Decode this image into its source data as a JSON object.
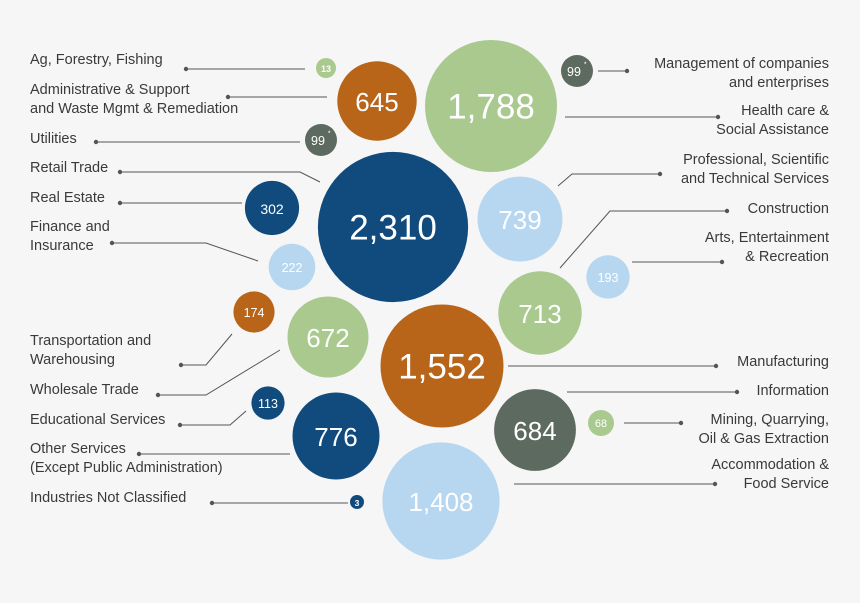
{
  "chart_data": {
    "type": "bubble",
    "title": "",
    "colors": {
      "dark_blue": "#114b7d",
      "light_blue": "#b7d7f0",
      "green": "#a9c98f",
      "orange": "#b8651a",
      "gray": "#5d6a5f",
      "line": "#555555"
    },
    "bubbles": [
      {
        "id": "ag",
        "label": [
          "Ag, Forestry, Fishing"
        ],
        "value": 13,
        "value_label": "13",
        "color": "green",
        "side": "left"
      },
      {
        "id": "admin",
        "label": [
          "Administrative & Support",
          "and Waste Mgmt & Remediation"
        ],
        "value": 645,
        "value_label": "645",
        "color": "orange",
        "side": "left"
      },
      {
        "id": "util",
        "label": [
          "Utilities"
        ],
        "value": 99,
        "value_label": "99",
        "sup": "*",
        "color": "gray",
        "side": "left"
      },
      {
        "id": "retail",
        "label": [
          "Retail Trade"
        ],
        "value": 2310,
        "value_label": "2,310",
        "color": "dark_blue",
        "side": "left"
      },
      {
        "id": "realestate",
        "label": [
          "Real Estate"
        ],
        "value": 302,
        "value_label": "302",
        "color": "dark_blue",
        "side": "left"
      },
      {
        "id": "finance",
        "label": [
          "Finance and",
          "Insurance"
        ],
        "value": 222,
        "value_label": "222",
        "color": "light_blue",
        "side": "left"
      },
      {
        "id": "transport",
        "label": [
          "Transportation and",
          "Warehousing"
        ],
        "value": 174,
        "value_label": "174",
        "color": "orange",
        "side": "left"
      },
      {
        "id": "wholesale",
        "label": [
          "Wholesale Trade"
        ],
        "value": 672,
        "value_label": "672",
        "color": "green",
        "side": "left"
      },
      {
        "id": "edu",
        "label": [
          "Educational Services"
        ],
        "value": 113,
        "value_label": "113",
        "color": "dark_blue",
        "side": "left"
      },
      {
        "id": "other",
        "label": [
          "Other Services",
          "(Except Public Administration)"
        ],
        "value": 776,
        "value_label": "776",
        "color": "dark_blue",
        "side": "left"
      },
      {
        "id": "notclass",
        "label": [
          "Industries Not Classified"
        ],
        "value": 3,
        "value_label": "3",
        "color": "dark_blue",
        "side": "left"
      },
      {
        "id": "mgmt",
        "label": [
          "Management of companies",
          "and enterprises"
        ],
        "value": 99,
        "value_label": "99",
        "sup": "*",
        "color": "gray",
        "side": "right"
      },
      {
        "id": "health",
        "label": [
          "Health care &",
          "Social Assistance"
        ],
        "value": 1788,
        "value_label": "1,788",
        "color": "green",
        "side": "right"
      },
      {
        "id": "prof",
        "label": [
          "Professional, Scientific",
          "and Technical Services"
        ],
        "value": 739,
        "value_label": "739",
        "color": "light_blue",
        "side": "right"
      },
      {
        "id": "construction",
        "label": [
          "Construction"
        ],
        "value": 713,
        "value_label": "713",
        "color": "green",
        "side": "right"
      },
      {
        "id": "arts",
        "label": [
          "Arts, Entertainment",
          "& Recreation"
        ],
        "value": 193,
        "value_label": "193",
        "color": "light_blue",
        "side": "right"
      },
      {
        "id": "manufacturing",
        "label": [
          "Manufacturing"
        ],
        "value": 1552,
        "value_label": "1,552",
        "color": "orange",
        "side": "right"
      },
      {
        "id": "info",
        "label": [
          "Information"
        ],
        "value": 684,
        "value_label": "684",
        "color": "gray",
        "side": "right"
      },
      {
        "id": "mining",
        "label": [
          "Mining, Quarrying,",
          "Oil & Gas Extraction"
        ],
        "value": 68,
        "value_label": "68",
        "color": "green",
        "side": "right"
      },
      {
        "id": "accom",
        "label": [
          "Accommodation &",
          "Food Service"
        ],
        "value": 1408,
        "value_label": "1,408",
        "color": "light_blue",
        "side": "right"
      }
    ]
  }
}
